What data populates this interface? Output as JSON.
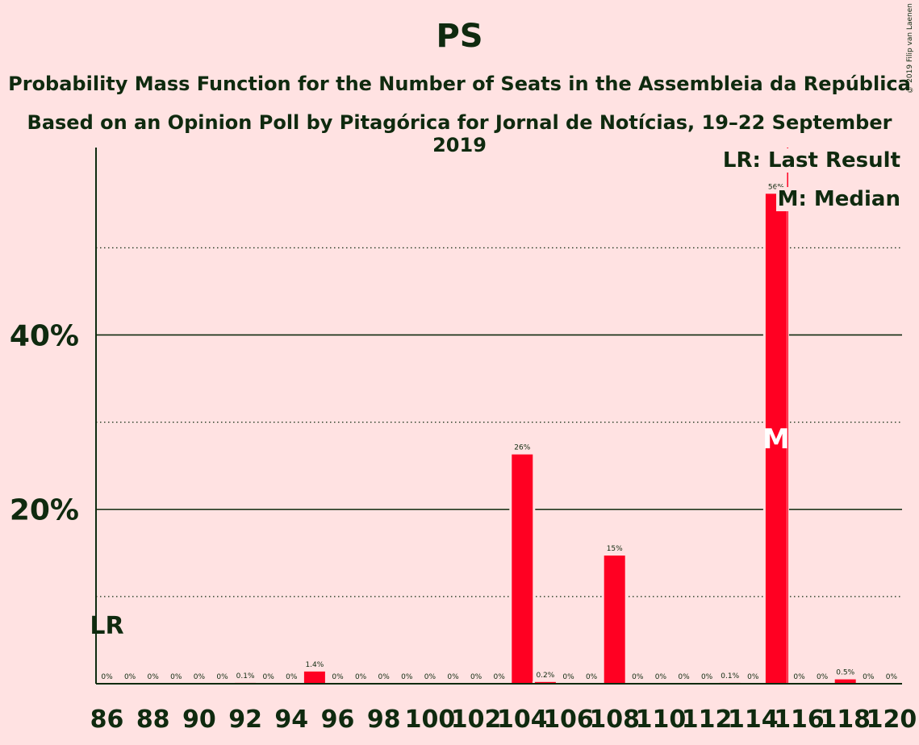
{
  "title": "PS",
  "subtitle_1": "Probability Mass Function for the Number of Seats in the Assembleia da República",
  "subtitle_2": "Based on an Opinion Poll by Pitagórica for Jornal de Notícias, 19–22 September 2019",
  "copyright": "© 2019 Filip van Laenen",
  "legend": {
    "last_result": "LR: Last Result",
    "median": "M: Median"
  },
  "colors": {
    "background": "#ffe2e2",
    "bar": "#ff0022",
    "text": "#0f2a0f",
    "last_result_line": "#ff0022"
  },
  "chart_data": {
    "type": "bar",
    "title": "PS",
    "xlabel": "",
    "ylabel": "",
    "x": [
      86,
      87,
      88,
      89,
      90,
      91,
      92,
      93,
      94,
      95,
      96,
      97,
      98,
      99,
      100,
      101,
      102,
      103,
      104,
      105,
      106,
      107,
      108,
      109,
      110,
      111,
      112,
      113,
      114,
      115,
      116,
      117,
      118,
      119,
      120
    ],
    "values": [
      0,
      0,
      0,
      0,
      0,
      0,
      0.1,
      0,
      0,
      1.4,
      0,
      0,
      0,
      0,
      0,
      0,
      0,
      0,
      26.3,
      0.2,
      0,
      0,
      14.7,
      0,
      0,
      0,
      0,
      0.1,
      0,
      56.2,
      0,
      0,
      0.5,
      0,
      0
    ],
    "labels": [
      "0%",
      "0%",
      "0%",
      "0%",
      "0%",
      "0%",
      "0.1%",
      "0%",
      "0%",
      "1.4%",
      "0%",
      "0%",
      "0%",
      "0%",
      "0%",
      "0%",
      "0%",
      "0%",
      "26%",
      "0.2%",
      "0%",
      "0%",
      "15%",
      "0%",
      "0%",
      "0%",
      "0%",
      "0.1%",
      "0%",
      "56%",
      "0%",
      "0%",
      "0.5%",
      "0%",
      "0%"
    ],
    "x_tick_labels": [
      "86",
      "88",
      "90",
      "92",
      "94",
      "96",
      "98",
      "100",
      "102",
      "104",
      "106",
      "108",
      "110",
      "112",
      "114",
      "116",
      "118",
      "120"
    ],
    "y_tick_labels": [
      "20%",
      "40%"
    ],
    "y_ticks": [
      20,
      40
    ],
    "y_minor_ticks": [
      10,
      30,
      50
    ],
    "ylim": [
      0,
      61.5
    ],
    "last_result": 86,
    "last_result_label": "LR",
    "last_result_line_seats": 115.5,
    "median": 115,
    "median_label": "M",
    "grid": true
  }
}
